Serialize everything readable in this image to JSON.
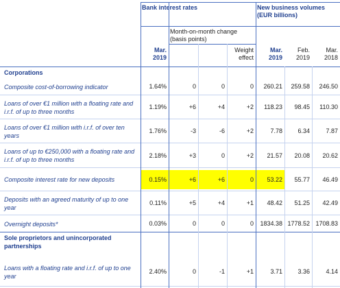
{
  "header": {
    "group_rates": "Bank interest rates",
    "group_volumes": "New business volumes (EUR billions)",
    "subgroup_change": "Month-on-month change (basis points)",
    "columns": [
      "Mar. 2019",
      "Weight effect",
      "Mar. 2019",
      "Feb. 2019",
      "Mar. 2018"
    ]
  },
  "highlight_color": "#ffff00",
  "sections": [
    {
      "title": "Corporations",
      "rows": [
        {
          "label": "Composite cost-of-borrowing indicator",
          "values": [
            "1.64%",
            "0",
            "0",
            "0",
            "260.21",
            "259.58",
            "246.50"
          ]
        },
        {
          "label": "Loans of over €1 million with a floating rate and i.r.f. of up to three months",
          "values": [
            "1.19%",
            "+6",
            "+4",
            "+2",
            "118.23",
            "98.45",
            "110.30"
          ]
        },
        {
          "label": "Loans of over €1 million with i.r.f. of over ten years",
          "values": [
            "1.76%",
            "-3",
            "-6",
            "+2",
            "7.78",
            "6.34",
            "7.87"
          ]
        },
        {
          "label": "Loans of up to €250,000 with a floating rate and i.r.f. of up to three months",
          "values": [
            "2.18%",
            "+3",
            "0",
            "+2",
            "21.57",
            "20.08",
            "20.62"
          ]
        },
        {
          "label": "Composite interest rate for new deposits",
          "values": [
            "0.15%",
            "+6",
            "+6",
            "0",
            "53.22",
            "55.77",
            "46.49"
          ],
          "highlight": true
        },
        {
          "label": "Deposits with an agreed maturity of up to one year",
          "values": [
            "0.11%",
            "+5",
            "+4",
            "+1",
            "48.42",
            "51.25",
            "42.49"
          ]
        },
        {
          "label": "Overnight deposits*",
          "values": [
            "0.03%",
            "0",
            "0",
            "0",
            "1834.38",
            "1778.52",
            "1708.83"
          ]
        }
      ]
    },
    {
      "title": "Sole proprietors and unincorporated partnerships",
      "rows": [
        {
          "label": "Loans with a floating rate and i.r.f. of up to one year",
          "values": [
            "2.40%",
            "0",
            "-1",
            "+1",
            "3.71",
            "3.36",
            "4.14"
          ]
        }
      ]
    }
  ]
}
